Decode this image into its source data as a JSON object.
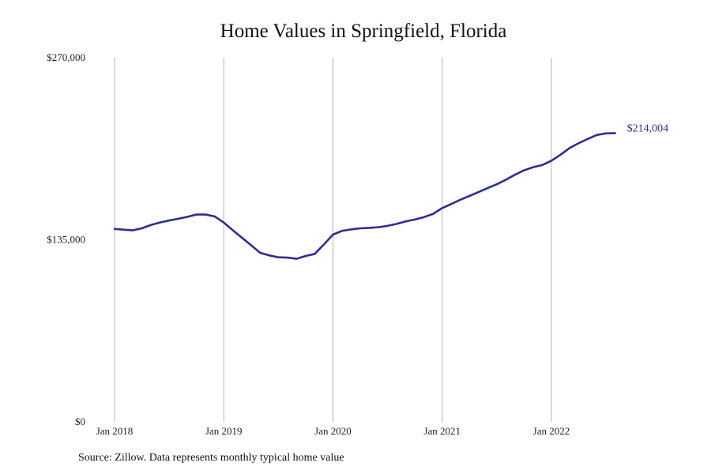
{
  "chart_data": {
    "type": "line",
    "title": "Home Values in Springfield, Florida",
    "source_note": "Source: Zillow. Data represents monthly typical home value",
    "xlabel": "",
    "ylabel": "",
    "x_start": "2018-01",
    "x_tick_labels": [
      "Jan 2018",
      "Jan 2019",
      "Jan 2020",
      "Jan 2021",
      "Jan 2022"
    ],
    "y_ticks": [
      0,
      135000,
      270000
    ],
    "y_tick_labels": [
      "$0",
      "$135,000",
      "$270,000"
    ],
    "ylim": [
      0,
      270000
    ],
    "grid": "vertical",
    "line_color": "#2e2e8f",
    "grid_color": "#b3b3b3",
    "series": [
      {
        "end_label": "$214,004",
        "x": [
          "2018-01",
          "2018-02",
          "2018-03",
          "2018-04",
          "2018-05",
          "2018-06",
          "2018-07",
          "2018-08",
          "2018-09",
          "2018-10",
          "2018-11",
          "2018-12",
          "2019-01",
          "2019-02",
          "2019-03",
          "2019-04",
          "2019-05",
          "2019-06",
          "2019-07",
          "2019-08",
          "2019-09",
          "2019-10",
          "2019-11",
          "2019-12",
          "2020-01",
          "2020-02",
          "2020-03",
          "2020-04",
          "2020-05",
          "2020-06",
          "2020-07",
          "2020-08",
          "2020-09",
          "2020-10",
          "2020-11",
          "2020-12",
          "2021-01",
          "2021-02",
          "2021-03",
          "2021-04",
          "2021-05",
          "2021-06",
          "2021-07",
          "2021-08",
          "2021-09",
          "2021-10",
          "2021-11",
          "2021-12",
          "2022-01",
          "2022-02",
          "2022-03",
          "2022-04",
          "2022-05",
          "2022-06",
          "2022-07",
          "2022-08"
        ],
        "values": [
          143000,
          142500,
          142000,
          143500,
          146000,
          147800,
          149300,
          150600,
          152000,
          153700,
          153700,
          152300,
          147800,
          142000,
          136500,
          131000,
          125300,
          123400,
          122000,
          121800,
          120900,
          123000,
          124500,
          131500,
          138800,
          141600,
          142700,
          143500,
          143800,
          144300,
          145300,
          146800,
          148600,
          150000,
          151800,
          154200,
          158500,
          161500,
          164700,
          167500,
          170400,
          173300,
          176200,
          179500,
          183200,
          186500,
          188800,
          190400,
          193600,
          198000,
          203000,
          206600,
          209800,
          212700,
          213900,
          214004
        ]
      }
    ]
  }
}
